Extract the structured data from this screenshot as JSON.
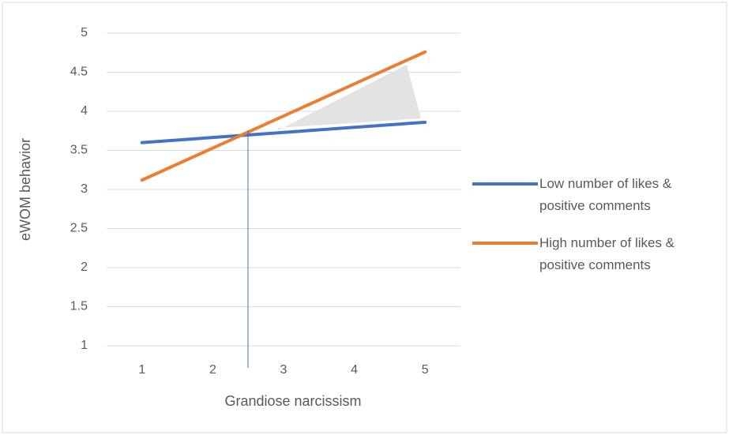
{
  "chart_data": {
    "type": "line",
    "x_label": "Grandiose narcissism",
    "y_label": "eWOM behavior",
    "categories": [
      "1",
      "2",
      "3",
      "4",
      "5"
    ],
    "series": [
      {
        "name": "Low number of likes & positive comments",
        "color": "#4472c4",
        "values": [
          3.6,
          3.665,
          3.73,
          3.795,
          3.86
        ]
      },
      {
        "name": "High number of likes & positive comments",
        "color": "#ed7d31",
        "values": [
          3.12,
          3.53,
          3.94,
          4.35,
          4.76
        ]
      }
    ],
    "ylim": [
      1,
      5
    ],
    "yticks": [
      1,
      1.5,
      2,
      2.5,
      3,
      3.5,
      4,
      4.5,
      5
    ],
    "grid": true,
    "legend": "right"
  }
}
